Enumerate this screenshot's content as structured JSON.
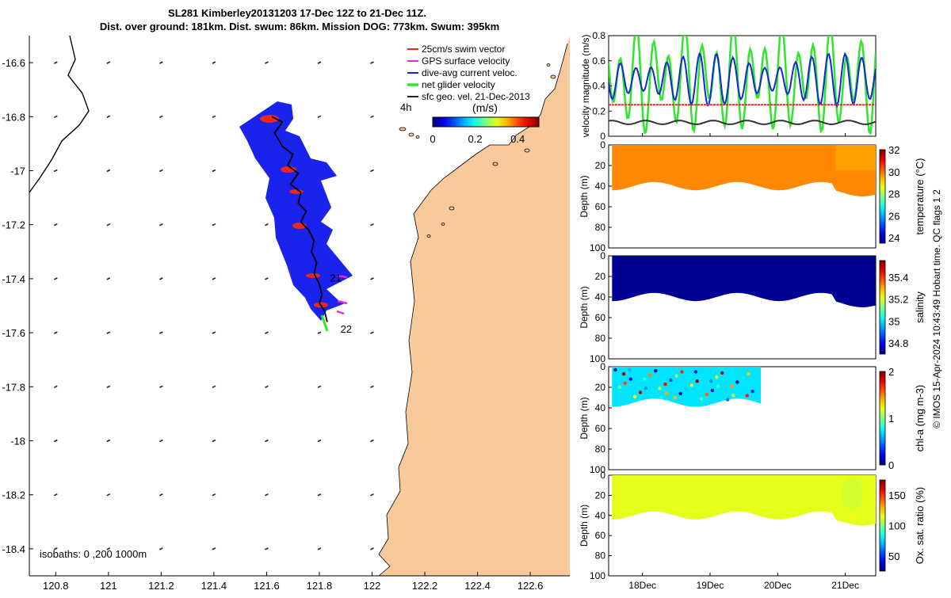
{
  "title": {
    "line1": "SL281 Kimberley20131203 17-Dec 12Z to 21-Dec 11Z.",
    "line2": "Dist. over ground: 181km. Dist. swum: 86km. Mission DOG: 773km. Swum: 395km"
  },
  "credit": "© IMOS 15-Apr-2024 10:43:49 Hobart time. QC flags 1  2",
  "colors": {
    "land": "#f8c99b",
    "glider_fill": "#1a22ee",
    "swim_vector": "#e8281e",
    "gps_vector": "#e62ad8",
    "current_vector": "#1428d6",
    "net_velocity": "#2ee62a",
    "sfc_velocity": "#222222",
    "track": "#000000"
  },
  "chart_data": [
    {
      "type": "map",
      "xlim": [
        120.7,
        122.75
      ],
      "ylim": [
        -18.5,
        -16.5
      ],
      "xticks": [
        120.8,
        121,
        121.2,
        121.4,
        121.6,
        121.8,
        122,
        122.2,
        122.4,
        122.6
      ],
      "xtick_labels": [
        "120.8",
        "121",
        "121.2",
        "121.4",
        "121.6",
        "121.8",
        "122",
        "122.2",
        "122.4",
        "122.6"
      ],
      "yticks": [
        -16.6,
        -16.8,
        -17,
        -17.2,
        -17.4,
        -17.6,
        -17.8,
        -18,
        -18.2,
        -18.4
      ],
      "ytick_labels": [
        "-16.6",
        "-16.8",
        "-17",
        "-17.2",
        "-17.4",
        "-17.6",
        "-17.8",
        "-18",
        "-18.2",
        "-18.4"
      ],
      "legend": {
        "placement": "top-right",
        "items": [
          "25cm/s swim vector",
          "GPS surface velocity",
          "dive-avg current veloc.",
          "net glider velocity",
          "sfc geo. vel. 21-Dec-2013"
        ]
      },
      "time_marker": "4h",
      "colorbar": {
        "label": "(m/s)",
        "ticks": [
          0,
          0.2,
          0.4
        ],
        "tick_labels": [
          "0",
          "0.2",
          "0.4"
        ],
        "range": [
          0,
          0.5
        ]
      },
      "day_labels": [
        {
          "text": "21",
          "lon": 121.84,
          "lat": -17.41
        },
        {
          "text": "22",
          "lon": 121.88,
          "lat": -17.6
        }
      ],
      "isobath_label": "isobaths: 0   ,200  1000m",
      "glider_track": [
        [
          121.62,
          -16.8
        ],
        [
          121.66,
          -16.82
        ],
        [
          121.63,
          -16.86
        ],
        [
          121.66,
          -16.91
        ],
        [
          121.7,
          -16.94
        ],
        [
          121.68,
          -16.98
        ],
        [
          121.72,
          -17.01
        ],
        [
          121.69,
          -17.05
        ],
        [
          121.73,
          -17.08
        ],
        [
          121.72,
          -17.12
        ],
        [
          121.75,
          -17.15
        ],
        [
          121.73,
          -17.19
        ],
        [
          121.76,
          -17.22
        ],
        [
          121.78,
          -17.26
        ],
        [
          121.77,
          -17.3
        ],
        [
          121.79,
          -17.34
        ],
        [
          121.78,
          -17.38
        ],
        [
          121.8,
          -17.42
        ],
        [
          121.81,
          -17.46
        ],
        [
          121.8,
          -17.49
        ],
        [
          121.82,
          -17.52
        ],
        [
          121.83,
          -17.56
        ]
      ],
      "surface_vectors": {
        "lons": [
          120.8,
          121,
          121.2,
          121.4,
          121.6,
          121.8,
          122
        ],
        "lats": [
          -16.6,
          -16.8,
          -17,
          -17.2,
          -17.4,
          -17.6,
          -17.8,
          -18,
          -18.2,
          -18.4
        ],
        "speed_mps": 0.03
      }
    },
    {
      "type": "line",
      "ylabel": "velocity magnitude (m/s)",
      "ylim": [
        0,
        0.8
      ],
      "yticks": [
        0,
        0.2,
        0.4,
        0.6,
        0.8
      ],
      "ytick_labels": [
        "0",
        "0.2",
        "0.4",
        "0.6",
        "0.8"
      ],
      "xlim": [
        17.5,
        21.45
      ],
      "series": [
        {
          "name": "net glider velocity",
          "color": "#2ee62a",
          "base": 0.45,
          "amp": 0.3
        },
        {
          "name": "dive-avg current veloc.",
          "color": "#1428d6",
          "base": 0.45,
          "amp": 0.15
        },
        {
          "name": "25cm/s swim vector",
          "color": "#e8281e",
          "value": 0.25
        },
        {
          "name": "sfc geo. vel. 21-Dec-2013",
          "color": "#333333",
          "base": 0.11,
          "amp": 0.015
        }
      ]
    },
    {
      "type": "heatmap",
      "variable": "temperature",
      "colorbar_label": "temperature (°C)",
      "clim": [
        23.5,
        32
      ],
      "cticks": [
        24,
        26,
        28,
        30,
        32
      ],
      "ctick_labels": [
        "24",
        "26",
        "28",
        "30",
        "32"
      ],
      "ylabel": "Depth (m)",
      "ylim": [
        0,
        100
      ],
      "yticks": [
        0,
        20,
        40,
        60,
        80,
        100
      ],
      "ytick_labels": [
        "0",
        "20",
        "40",
        "60",
        "80",
        "100"
      ],
      "typical_value": 29.8,
      "profile_depth_m": 40
    },
    {
      "type": "heatmap",
      "variable": "salinity",
      "colorbar_label": "salinity",
      "clim": [
        34.7,
        35.55
      ],
      "cticks": [
        34.8,
        35,
        35.2,
        35.4
      ],
      "ctick_labels": [
        "34.8",
        "35",
        "35.2",
        "35.4"
      ],
      "ylabel": "Depth (m)",
      "ylim": [
        0,
        100
      ],
      "yticks": [
        0,
        20,
        40,
        60,
        80,
        100
      ],
      "ytick_labels": [
        "0",
        "20",
        "40",
        "60",
        "80",
        "100"
      ],
      "typical_value": 34.72,
      "profile_depth_m": 40
    },
    {
      "type": "heatmap",
      "variable": "chl-a",
      "colorbar_label": "chl-a (mg m-3)",
      "clim": [
        0,
        2
      ],
      "cticks": [
        0,
        1,
        2
      ],
      "ctick_labels": [
        "0",
        "1",
        "2"
      ],
      "ylabel": "Depth (m)",
      "ylim": [
        0,
        100
      ],
      "yticks": [
        0,
        20,
        40,
        60,
        80,
        100
      ],
      "ytick_labels": [
        "0",
        "20",
        "40",
        "60",
        "80",
        "100"
      ],
      "typical_value": 0.7,
      "profile_depth_m": 35,
      "time_end": 19.75
    },
    {
      "type": "heatmap",
      "variable": "oxygen saturation",
      "colorbar_label": "Ox. sat. ratio (%)",
      "clim": [
        25,
        175
      ],
      "cticks": [
        50,
        100,
        150
      ],
      "ctick_labels": [
        "50",
        "100",
        "150"
      ],
      "ylabel": "Depth (m)",
      "ylim": [
        0,
        100
      ],
      "yticks": [
        0,
        20,
        40,
        60,
        80,
        100
      ],
      "ytick_labels": [
        "0",
        "20",
        "40",
        "60",
        "80",
        "100"
      ],
      "typical_value": 115,
      "profile_depth_m": 40,
      "xticks": [
        18,
        19,
        20,
        21
      ],
      "xtick_labels": [
        "18Dec",
        "19Dec",
        "20Dec",
        "21Dec"
      ]
    }
  ]
}
